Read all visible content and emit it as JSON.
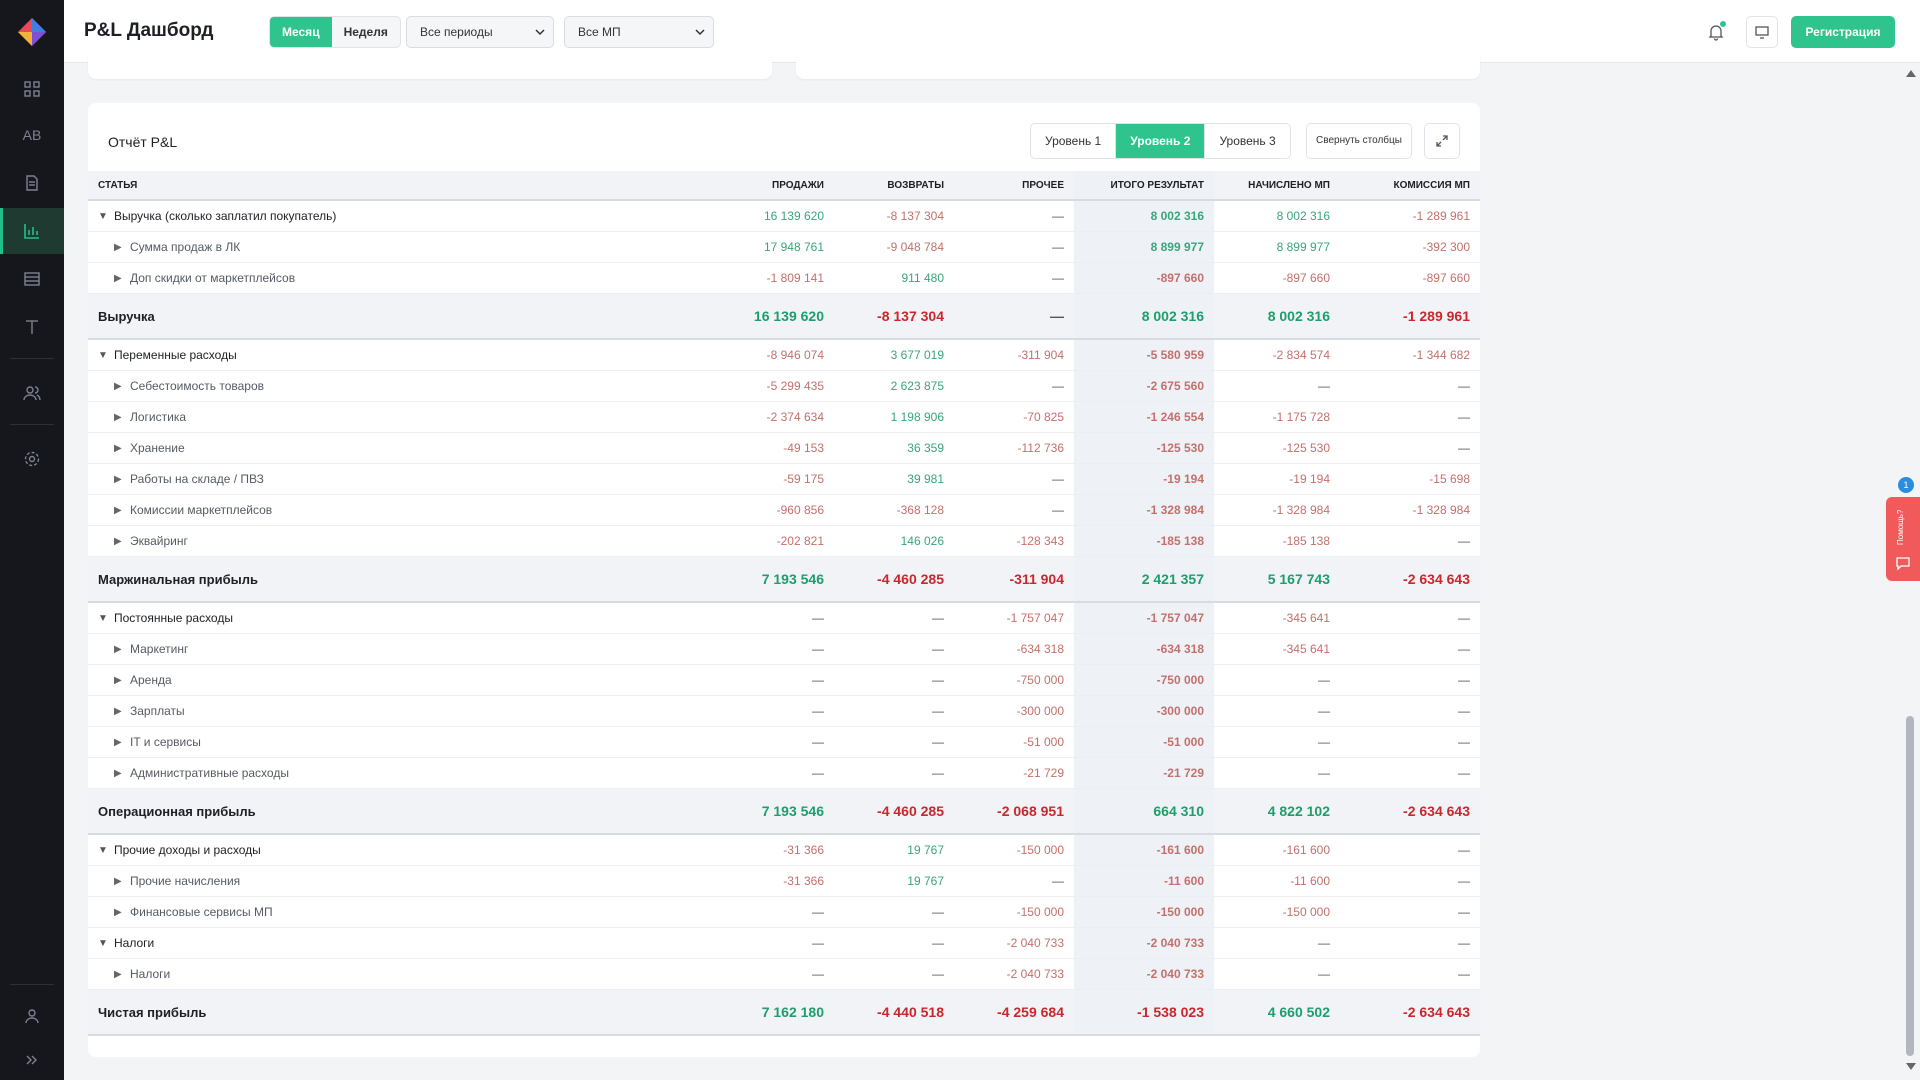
{
  "header": {
    "title": "P&L Дашборд",
    "period_toggle": [
      "Месяц",
      "Неделя"
    ],
    "period_select": "Все периоды",
    "mp_select": "Все МП",
    "register_label": "Регистрация"
  },
  "sidebar": {
    "items": [
      {
        "icon": "grid-icon"
      },
      {
        "icon": "ab-icon",
        "label": "AB"
      },
      {
        "icon": "document-icon"
      },
      {
        "icon": "chart-icon"
      },
      {
        "icon": "table-icon"
      },
      {
        "icon": "text-icon"
      },
      {
        "icon": "users-icon"
      },
      {
        "icon": "gear-icon"
      },
      {
        "icon": "user-icon"
      },
      {
        "icon": "expand-icon"
      }
    ]
  },
  "report": {
    "title": "Отчёт P&L",
    "levels": [
      "Уровень 1",
      "Уровень 2",
      "Уровень 3"
    ],
    "active_level": "Уровень 2",
    "collapse_label": "Свернуть столбцы",
    "columns": [
      "СТАТЬЯ",
      "ПРОДАЖИ",
      "ВОЗВРАТЫ",
      "ПРОЧЕЕ",
      "ИТОГО РЕЗУЛЬТАТ",
      "НАЧИСЛЕНО МП",
      "КОМИССИЯ МП"
    ],
    "rows": [
      {
        "type": "l1",
        "name": "Выручка (сколько заплатил покупатель)",
        "v": [
          "16 139 620",
          "-8 137 304",
          "—",
          "8 002 316",
          "8 002 316",
          "-1 289 961"
        ]
      },
      {
        "type": "l2",
        "name": "Сумма продаж в ЛК",
        "v": [
          "17 948 761",
          "-9 048 784",
          "—",
          "8 899 977",
          "8 899 977",
          "-392 300"
        ]
      },
      {
        "type": "l2",
        "name": "Доп скидки от маркетплейсов",
        "v": [
          "-1 809 141",
          "911 480",
          "—",
          "-897 660",
          "-897 660",
          "-897 660"
        ]
      },
      {
        "type": "sum",
        "name": "Выручка",
        "v": [
          "16 139 620",
          "-8 137 304",
          "—",
          "8 002 316",
          "8 002 316",
          "-1 289 961"
        ]
      },
      {
        "type": "l1",
        "name": "Переменные расходы",
        "v": [
          "-8 946 074",
          "3 677 019",
          "-311 904",
          "-5 580 959",
          "-2 834 574",
          "-1 344 682"
        ]
      },
      {
        "type": "l2",
        "name": "Себестоимость товаров",
        "v": [
          "-5 299 435",
          "2 623 875",
          "—",
          "-2 675 560",
          "—",
          "—"
        ]
      },
      {
        "type": "l2",
        "name": "Логистика",
        "v": [
          "-2 374 634",
          "1 198 906",
          "-70 825",
          "-1 246 554",
          "-1 175 728",
          "—"
        ]
      },
      {
        "type": "l2",
        "name": "Хранение",
        "v": [
          "-49 153",
          "36 359",
          "-112 736",
          "-125 530",
          "-125 530",
          "—"
        ]
      },
      {
        "type": "l2",
        "name": "Работы на складе / ПВЗ",
        "v": [
          "-59 175",
          "39 981",
          "—",
          "-19 194",
          "-19 194",
          "-15 698"
        ]
      },
      {
        "type": "l2",
        "name": "Комиссии маркетплейсов",
        "v": [
          "-960 856",
          "-368 128",
          "—",
          "-1 328 984",
          "-1 328 984",
          "-1 328 984"
        ]
      },
      {
        "type": "l2",
        "name": "Эквайринг",
        "v": [
          "-202 821",
          "146 026",
          "-128 343",
          "-185 138",
          "-185 138",
          "—"
        ]
      },
      {
        "type": "sum",
        "name": "Маржинальная прибыль",
        "v": [
          "7 193 546",
          "-4 460 285",
          "-311 904",
          "2 421 357",
          "5 167 743",
          "-2 634 643"
        ]
      },
      {
        "type": "l1",
        "name": "Постоянные расходы",
        "v": [
          "—",
          "—",
          "-1 757 047",
          "-1 757 047",
          "-345 641",
          "—"
        ]
      },
      {
        "type": "l2",
        "name": "Маркетинг",
        "v": [
          "—",
          "—",
          "-634 318",
          "-634 318",
          "-345 641",
          "—"
        ]
      },
      {
        "type": "l2",
        "name": "Аренда",
        "v": [
          "—",
          "—",
          "-750 000",
          "-750 000",
          "—",
          "—"
        ]
      },
      {
        "type": "l2",
        "name": "Зарплаты",
        "v": [
          "—",
          "—",
          "-300 000",
          "-300 000",
          "—",
          "—"
        ]
      },
      {
        "type": "l2",
        "name": "IT и сервисы",
        "v": [
          "—",
          "—",
          "-51 000",
          "-51 000",
          "—",
          "—"
        ]
      },
      {
        "type": "l2",
        "name": "Административные расходы",
        "v": [
          "—",
          "—",
          "-21 729",
          "-21 729",
          "—",
          "—"
        ]
      },
      {
        "type": "sum",
        "name": "Операционная прибыль",
        "v": [
          "7 193 546",
          "-4 460 285",
          "-2 068 951",
          "664 310",
          "4 822 102",
          "-2 634 643"
        ]
      },
      {
        "type": "l1",
        "name": "Прочие доходы и расходы",
        "v": [
          "-31 366",
          "19 767",
          "-150 000",
          "-161 600",
          "-161 600",
          "—"
        ]
      },
      {
        "type": "l2",
        "name": "Прочие начисления",
        "v": [
          "-31 366",
          "19 767",
          "—",
          "-11 600",
          "-11 600",
          "—"
        ]
      },
      {
        "type": "l2",
        "name": "Финансовые сервисы МП",
        "v": [
          "—",
          "—",
          "-150 000",
          "-150 000",
          "-150 000",
          "—"
        ]
      },
      {
        "type": "l1",
        "name": "Налоги",
        "v": [
          "—",
          "—",
          "-2 040 733",
          "-2 040 733",
          "—",
          "—"
        ]
      },
      {
        "type": "l2",
        "name": "Налоги",
        "v": [
          "—",
          "—",
          "-2 040 733",
          "-2 040 733",
          "—",
          "—"
        ]
      },
      {
        "type": "sum",
        "name": "Чистая прибыль",
        "v": [
          "7 162 180",
          "-4 440 518",
          "-4 259 684",
          "-1 538 023",
          "4 660 502",
          "-2 634 643"
        ]
      }
    ]
  },
  "help": {
    "label": "Помощь?",
    "badge": "1"
  },
  "colors": {
    "accent": "#2fc48d",
    "positive": "#2a9a6e",
    "negative": "#c0504d",
    "sidebar_bg": "#15171c"
  }
}
